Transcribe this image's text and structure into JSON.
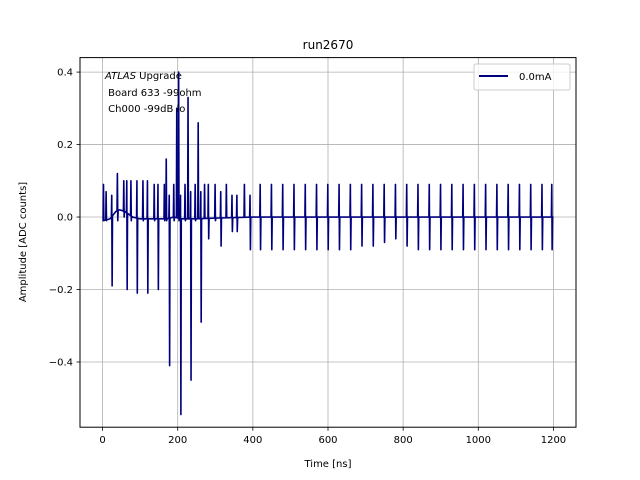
{
  "chart_data": {
    "type": "line",
    "title": "run2670",
    "xlabel": "Time [ns]",
    "ylabel": "Amplitude [ADC counts]",
    "xlim": [
      -60,
      1260
    ],
    "ylim": [
      -0.58,
      0.44
    ],
    "xticks": [
      0,
      200,
      400,
      600,
      800,
      1000,
      1200
    ],
    "yticks": [
      -0.4,
      -0.2,
      0.0,
      0.2,
      0.4
    ],
    "ytick_labels": [
      "−0.4",
      "−0.2",
      "0.0",
      "0.2",
      "0.4"
    ],
    "grid": true,
    "legend_position": "top-right",
    "annotation": {
      "line1_italic": "ATLAS",
      "line1_rest": " Upgrade",
      "line2": " Board 633 -99ohm",
      "line3": " Ch000 -99dB lo"
    },
    "series": [
      {
        "name": "0.0mA",
        "color": "#00007f",
        "x_start": 0,
        "x_end": 1200,
        "baseline": [
          [
            0,
            -0.01
          ],
          [
            20,
            -0.005
          ],
          [
            35,
            0.015
          ],
          [
            45,
            0.02
          ],
          [
            60,
            0.015
          ],
          [
            80,
            0.0
          ],
          [
            100,
            -0.005
          ],
          [
            130,
            -0.005
          ],
          [
            170,
            -0.005
          ],
          [
            190,
            0.0
          ],
          [
            210,
            -0.005
          ],
          [
            250,
            -0.005
          ],
          [
            300,
            -0.003
          ],
          [
            400,
            0.0
          ],
          [
            500,
            0.0
          ],
          [
            600,
            0.0
          ],
          [
            700,
            0.0
          ],
          [
            800,
            0.0
          ],
          [
            900,
            0.0
          ],
          [
            1000,
            0.0
          ],
          [
            1100,
            0.0
          ],
          [
            1200,
            0.0
          ]
        ],
        "spikes": [
          {
            "x": 3,
            "pos": 0.09,
            "neg": -0.01
          },
          {
            "x": 10,
            "pos": 0.07,
            "neg": -0.01
          },
          {
            "x": 25,
            "pos": 0.06,
            "neg": -0.19
          },
          {
            "x": 40,
            "pos": 0.12,
            "neg": -0.01
          },
          {
            "x": 57,
            "pos": 0.1,
            "neg": 0.0
          },
          {
            "x": 65,
            "pos": 0.1,
            "neg": -0.2
          },
          {
            "x": 76,
            "pos": 0.1,
            "neg": -0.01
          },
          {
            "x": 92,
            "pos": 0.1,
            "neg": -0.21
          },
          {
            "x": 108,
            "pos": 0.1,
            "neg": -0.01
          },
          {
            "x": 120,
            "pos": 0.1,
            "neg": -0.21
          },
          {
            "x": 138,
            "pos": 0.09,
            "neg": -0.01
          },
          {
            "x": 148,
            "pos": 0.09,
            "neg": -0.2
          },
          {
            "x": 165,
            "pos": 0.09,
            "neg": -0.01
          },
          {
            "x": 170,
            "pos": 0.16,
            "neg": -0.01
          },
          {
            "x": 178,
            "pos": 0.06,
            "neg": -0.41
          },
          {
            "x": 190,
            "pos": 0.09,
            "neg": -0.01
          },
          {
            "x": 198,
            "pos": 0.3,
            "neg": 0.0
          },
          {
            "x": 203,
            "pos": 0.4,
            "neg": -0.01
          },
          {
            "x": 208,
            "pos": 0.06,
            "neg": -0.545
          },
          {
            "x": 220,
            "pos": 0.09,
            "neg": -0.01
          },
          {
            "x": 228,
            "pos": 0.33,
            "neg": 0.0
          },
          {
            "x": 235,
            "pos": 0.07,
            "neg": -0.45
          },
          {
            "x": 247,
            "pos": 0.09,
            "neg": -0.01
          },
          {
            "x": 255,
            "pos": 0.26,
            "neg": 0.0
          },
          {
            "x": 262,
            "pos": 0.07,
            "neg": -0.29
          },
          {
            "x": 272,
            "pos": 0.09,
            "neg": 0.0
          },
          {
            "x": 282,
            "pos": 0.09,
            "neg": -0.06
          },
          {
            "x": 300,
            "pos": 0.09,
            "neg": -0.01
          },
          {
            "x": 315,
            "pos": 0.07,
            "neg": -0.08
          },
          {
            "x": 330,
            "pos": 0.09,
            "neg": 0.0
          },
          {
            "x": 345,
            "pos": 0.06,
            "neg": -0.04
          },
          {
            "x": 358,
            "pos": 0.06,
            "neg": -0.04
          },
          {
            "x": 378,
            "pos": 0.09,
            "neg": 0.0
          },
          {
            "x": 393,
            "pos": 0.06,
            "neg": -0.09
          },
          {
            "x": 420,
            "pos": 0.09,
            "neg": -0.09
          },
          {
            "x": 450,
            "pos": 0.09,
            "neg": -0.09
          },
          {
            "x": 480,
            "pos": 0.09,
            "neg": -0.09
          },
          {
            "x": 510,
            "pos": 0.09,
            "neg": -0.09
          },
          {
            "x": 540,
            "pos": 0.09,
            "neg": -0.09
          },
          {
            "x": 570,
            "pos": 0.09,
            "neg": -0.09
          },
          {
            "x": 600,
            "pos": 0.09,
            "neg": -0.09
          },
          {
            "x": 630,
            "pos": 0.09,
            "neg": -0.09
          },
          {
            "x": 660,
            "pos": 0.09,
            "neg": -0.09
          },
          {
            "x": 690,
            "pos": 0.09,
            "neg": -0.08
          },
          {
            "x": 720,
            "pos": 0.09,
            "neg": -0.08
          },
          {
            "x": 750,
            "pos": 0.09,
            "neg": -0.07
          },
          {
            "x": 780,
            "pos": 0.09,
            "neg": -0.06
          },
          {
            "x": 810,
            "pos": 0.09,
            "neg": -0.08
          },
          {
            "x": 840,
            "pos": 0.09,
            "neg": -0.09
          },
          {
            "x": 870,
            "pos": 0.09,
            "neg": -0.09
          },
          {
            "x": 900,
            "pos": 0.09,
            "neg": -0.09
          },
          {
            "x": 930,
            "pos": 0.09,
            "neg": -0.09
          },
          {
            "x": 960,
            "pos": 0.09,
            "neg": -0.09
          },
          {
            "x": 990,
            "pos": 0.09,
            "neg": -0.09
          },
          {
            "x": 1020,
            "pos": 0.09,
            "neg": -0.09
          },
          {
            "x": 1050,
            "pos": 0.09,
            "neg": -0.09
          },
          {
            "x": 1080,
            "pos": 0.09,
            "neg": -0.09
          },
          {
            "x": 1110,
            "pos": 0.09,
            "neg": -0.09
          },
          {
            "x": 1140,
            "pos": 0.09,
            "neg": -0.09
          },
          {
            "x": 1170,
            "pos": 0.09,
            "neg": -0.09
          },
          {
            "x": 1196,
            "pos": 0.09,
            "neg": -0.09
          }
        ]
      }
    ]
  }
}
